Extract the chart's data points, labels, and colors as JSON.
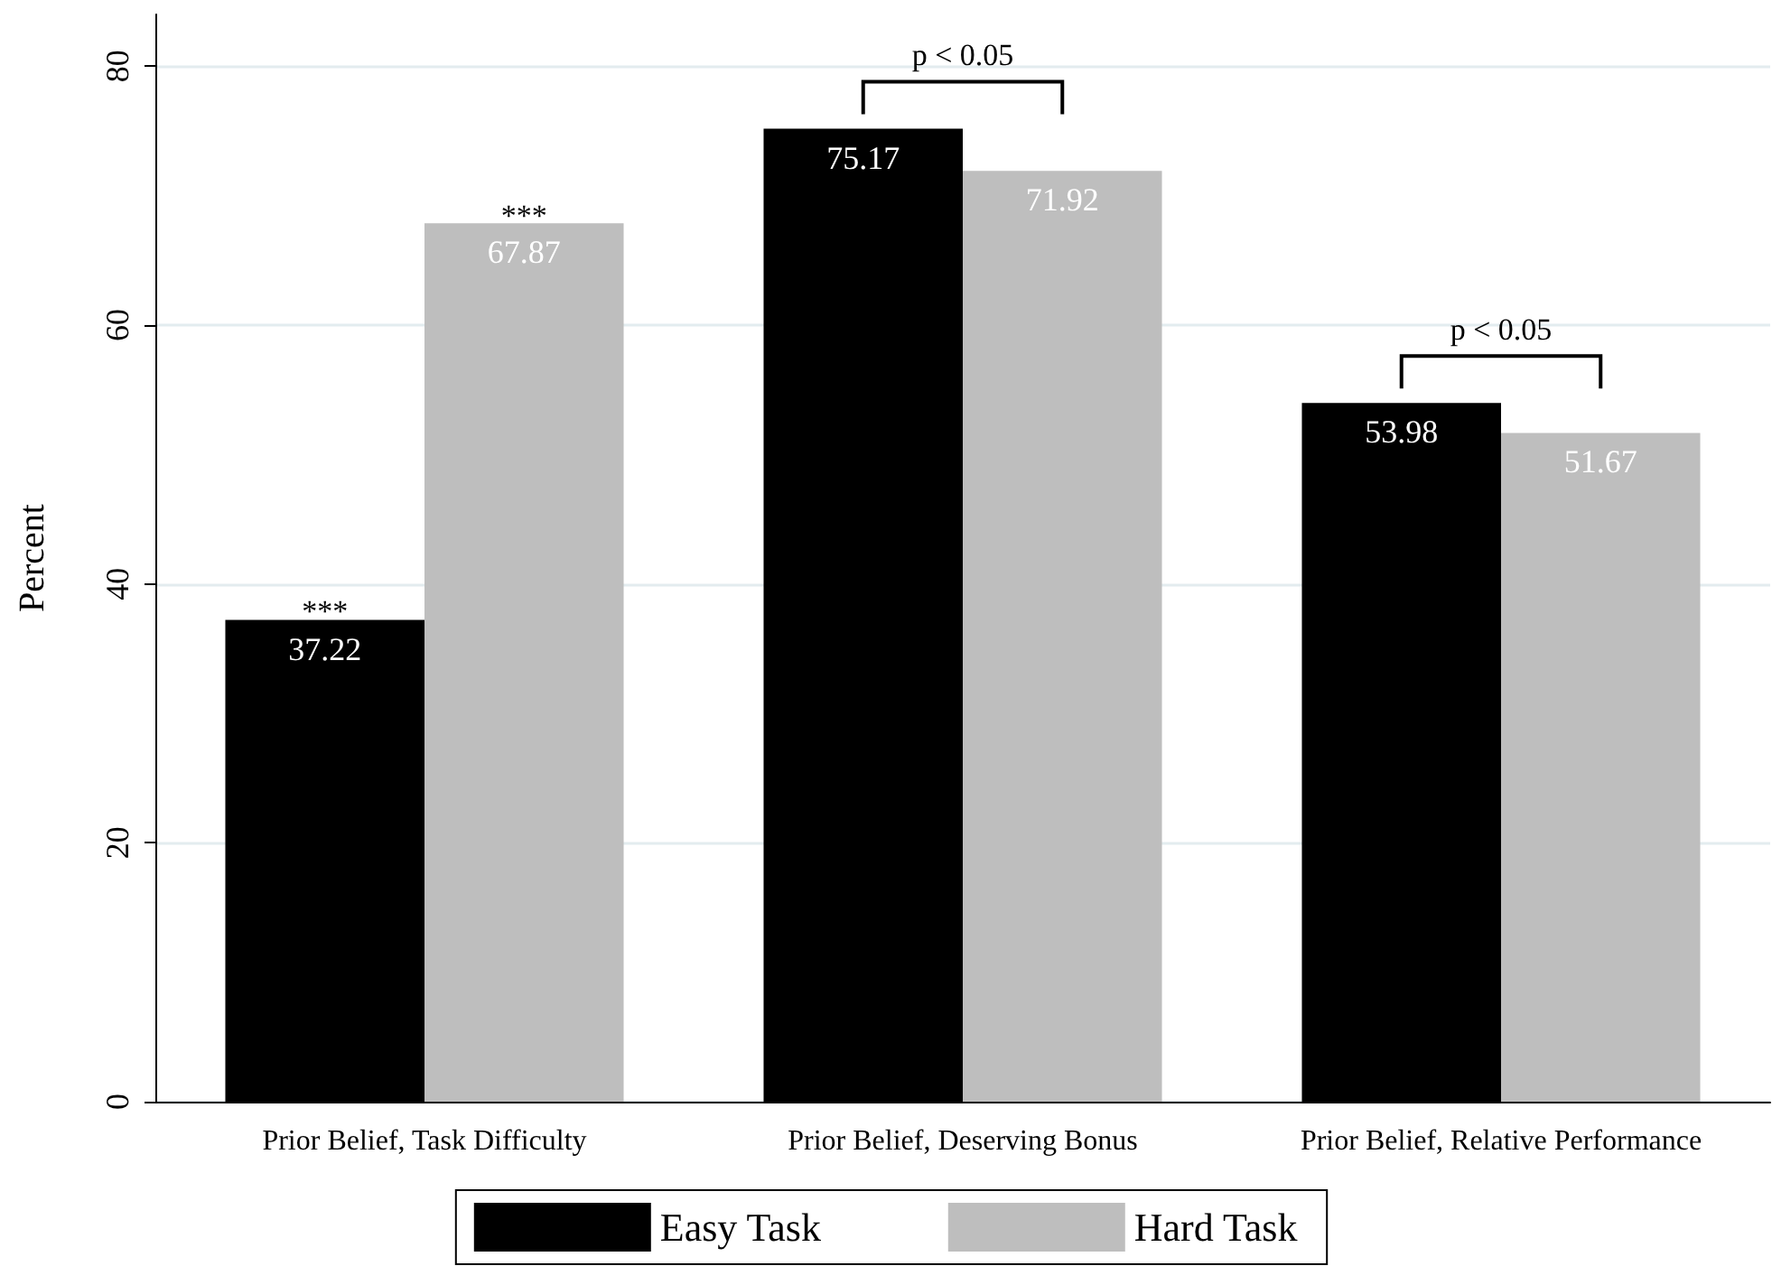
{
  "chart_data": {
    "type": "bar",
    "categories": [
      "Prior Belief, Task Difficulty",
      "Prior Belief, Deserving Bonus",
      "Prior Belief, Relative Performance"
    ],
    "series": [
      {
        "name": "Easy Task",
        "color": "#000000",
        "values": [
          37.22,
          75.17,
          53.98
        ]
      },
      {
        "name": "Hard Task",
        "color": "#bebebe",
        "values": [
          67.87,
          71.92,
          51.67
        ]
      }
    ],
    "ylabel": "Percent",
    "ylim": [
      0,
      84
    ],
    "yticks": [
      0,
      20,
      40,
      60,
      80
    ],
    "grid": "y",
    "legend": "bottom",
    "data_labels": true,
    "annotations": [
      {
        "text": "***",
        "x": "Prior Belief, Task Difficulty",
        "y": 37.22
      },
      {
        "text": "***",
        "x": "Prior Belief, Task Difficulty",
        "y": 67.87
      },
      "p < 0.05",
      "p < 0.05"
    ]
  }
}
